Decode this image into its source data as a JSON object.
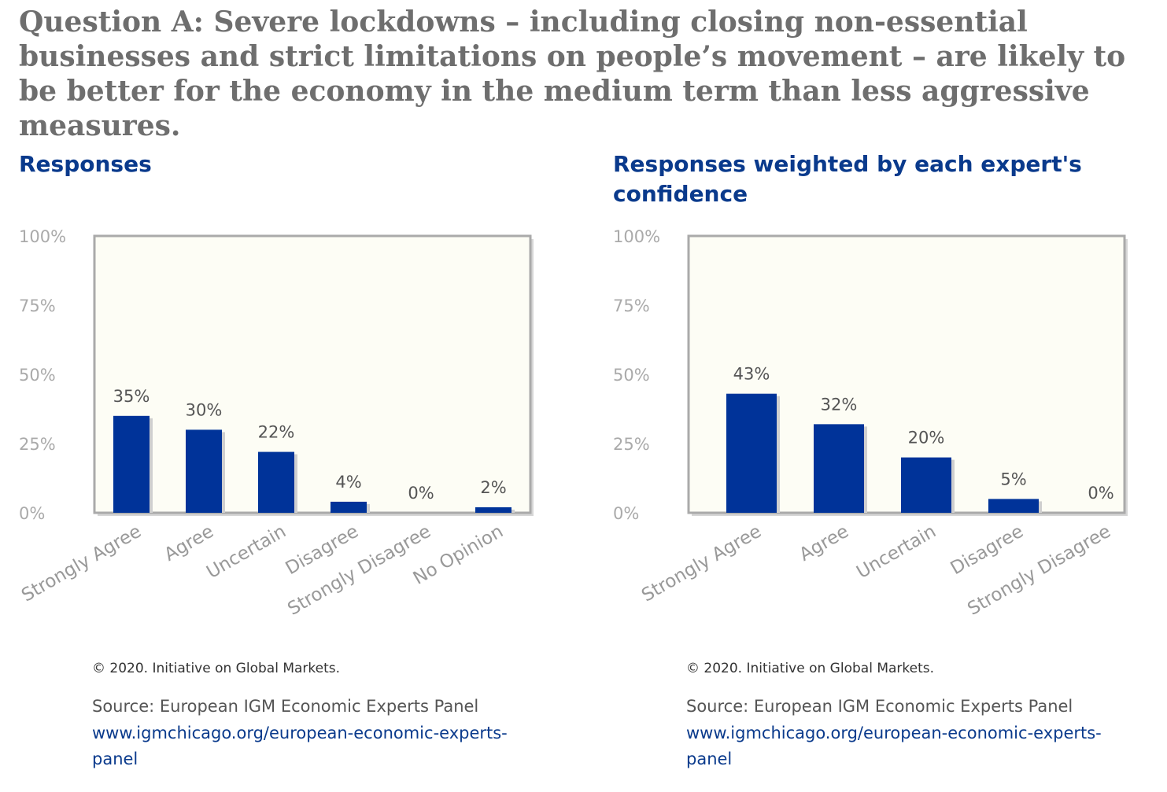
{
  "question": "Question A: Severe lockdowns – including closing non-essential businesses and strict limitations on people’s movement – are likely to be better for the economy in the medium term than less aggressive measures.",
  "colors": {
    "bar": "#003399",
    "plot_bg": "#fdfdf5",
    "frame": "#aaaaaa",
    "title": "#0a3a8c",
    "question": "#6e6e6e"
  },
  "chart_data": [
    {
      "type": "bar",
      "title": "Responses",
      "categories": [
        "Strongly Agree",
        "Agree",
        "Uncertain",
        "Disagree",
        "Strongly Disagree",
        "No Opinion"
      ],
      "values": [
        35,
        30,
        22,
        4,
        0,
        2
      ],
      "value_labels": [
        "35%",
        "30%",
        "22%",
        "4%",
        "0%",
        "2%"
      ],
      "ylim": [
        0,
        100
      ],
      "yticks": [
        "0%",
        "25%",
        "50%",
        "75%",
        "100%"
      ],
      "xlabel": "",
      "ylabel": "",
      "copyright": "© 2020. Initiative on Global Markets.",
      "source": "Source: European IGM Economic Experts Panel",
      "link": "www.igmchicago.org/european-economic-experts-panel"
    },
    {
      "type": "bar",
      "title": "Responses weighted by each expert's confidence",
      "categories": [
        "Strongly Agree",
        "Agree",
        "Uncertain",
        "Disagree",
        "Strongly Disagree"
      ],
      "values": [
        43,
        32,
        20,
        5,
        0
      ],
      "value_labels": [
        "43%",
        "32%",
        "20%",
        "5%",
        "0%"
      ],
      "ylim": [
        0,
        100
      ],
      "yticks": [
        "0%",
        "25%",
        "50%",
        "75%",
        "100%"
      ],
      "xlabel": "",
      "ylabel": "",
      "copyright": "© 2020. Initiative on Global Markets.",
      "source": "Source: European IGM Economic Experts Panel",
      "link": "www.igmchicago.org/european-economic-experts-panel"
    }
  ]
}
